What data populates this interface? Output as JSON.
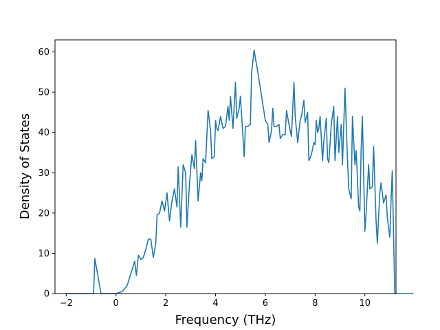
{
  "chart_data": {
    "type": "line",
    "title": "",
    "xlabel": "Frequency (THz)",
    "ylabel": "Density of States",
    "xlim": [
      -2.45,
      11.25
    ],
    "ylim": [
      0,
      63
    ],
    "xticks": [
      -2,
      0,
      2,
      4,
      6,
      8,
      10
    ],
    "yticks": [
      0,
      10,
      20,
      30,
      40,
      50,
      60
    ],
    "grid": false,
    "legend": "none",
    "line_color": "#1f77b4",
    "series": [
      {
        "points": [
          [
            -2.0,
            0
          ],
          [
            -0.9,
            0
          ],
          [
            -0.85,
            8.7
          ],
          [
            -0.6,
            0
          ],
          [
            0.0,
            0
          ],
          [
            0.25,
            0.5
          ],
          [
            0.45,
            2
          ],
          [
            0.6,
            5
          ],
          [
            0.75,
            8.0
          ],
          [
            0.82,
            4.5
          ],
          [
            0.9,
            9.5
          ],
          [
            1.0,
            8.5
          ],
          [
            1.1,
            9.0
          ],
          [
            1.2,
            11.0
          ],
          [
            1.3,
            13.5
          ],
          [
            1.4,
            13.5
          ],
          [
            1.5,
            9.0
          ],
          [
            1.6,
            12.5
          ],
          [
            1.65,
            19.5
          ],
          [
            1.75,
            20.0
          ],
          [
            1.85,
            23.0
          ],
          [
            1.95,
            20.5
          ],
          [
            2.05,
            25.0
          ],
          [
            2.15,
            18.0
          ],
          [
            2.25,
            23.0
          ],
          [
            2.35,
            26.0
          ],
          [
            2.45,
            21.5
          ],
          [
            2.5,
            31.5
          ],
          [
            2.6,
            16.5
          ],
          [
            2.7,
            32.0
          ],
          [
            2.8,
            30.0
          ],
          [
            2.85,
            16.5
          ],
          [
            2.95,
            27.0
          ],
          [
            3.05,
            34.5
          ],
          [
            3.15,
            31.0
          ],
          [
            3.2,
            38.0
          ],
          [
            3.3,
            23.0
          ],
          [
            3.4,
            30.0
          ],
          [
            3.45,
            28.0
          ],
          [
            3.5,
            33.5
          ],
          [
            3.6,
            32.5
          ],
          [
            3.7,
            45.5
          ],
          [
            3.8,
            40.5
          ],
          [
            3.85,
            33.5
          ],
          [
            3.95,
            34.0
          ],
          [
            4.0,
            43.0
          ],
          [
            4.05,
            41.0
          ],
          [
            4.1,
            40.5
          ],
          [
            4.2,
            44.0
          ],
          [
            4.3,
            41.0
          ],
          [
            4.4,
            41.5
          ],
          [
            4.5,
            46.5
          ],
          [
            4.55,
            43.0
          ],
          [
            4.6,
            49.0
          ],
          [
            4.7,
            41.0
          ],
          [
            4.8,
            52.5
          ],
          [
            4.85,
            43.5
          ],
          [
            4.95,
            46.0
          ],
          [
            5.0,
            49.0
          ],
          [
            5.05,
            44.0
          ],
          [
            5.15,
            34.0
          ],
          [
            5.2,
            41.5
          ],
          [
            5.3,
            41.5
          ],
          [
            5.4,
            42.0
          ],
          [
            5.45,
            55.0
          ],
          [
            5.55,
            60.5
          ],
          [
            5.6,
            58.5
          ],
          [
            5.7,
            55.0
          ],
          [
            5.8,
            51.0
          ],
          [
            5.9,
            47.0
          ],
          [
            6.0,
            43.0
          ],
          [
            6.1,
            42.0
          ],
          [
            6.15,
            37.5
          ],
          [
            6.25,
            40.5
          ],
          [
            6.3,
            46.0
          ],
          [
            6.35,
            41.5
          ],
          [
            6.45,
            41.5
          ],
          [
            6.55,
            42.0
          ],
          [
            6.6,
            38.5
          ],
          [
            6.7,
            39.5
          ],
          [
            6.8,
            39.5
          ],
          [
            6.85,
            45.5
          ],
          [
            6.95,
            42.0
          ],
          [
            7.05,
            39.0
          ],
          [
            7.15,
            52.5
          ],
          [
            7.2,
            44.0
          ],
          [
            7.3,
            37.5
          ],
          [
            7.4,
            43.0
          ],
          [
            7.45,
            44.0
          ],
          [
            7.55,
            48.0
          ],
          [
            7.6,
            42.5
          ],
          [
            7.7,
            45.0
          ],
          [
            7.75,
            33.0
          ],
          [
            7.85,
            34.5
          ],
          [
            7.95,
            37.5
          ],
          [
            8.0,
            37.0
          ],
          [
            8.05,
            43.0
          ],
          [
            8.1,
            40.0
          ],
          [
            8.15,
            41.0
          ],
          [
            8.2,
            44.0
          ],
          [
            8.3,
            33.0
          ],
          [
            8.35,
            38.0
          ],
          [
            8.45,
            43.5
          ],
          [
            8.5,
            33.5
          ],
          [
            8.55,
            32.5
          ],
          [
            8.65,
            42.0
          ],
          [
            8.75,
            46.5
          ],
          [
            8.8,
            33.0
          ],
          [
            8.9,
            44.0
          ],
          [
            8.95,
            35.0
          ],
          [
            9.05,
            42.0
          ],
          [
            9.1,
            32.0
          ],
          [
            9.2,
            51.0
          ],
          [
            9.3,
            33.5
          ],
          [
            9.35,
            26.0
          ],
          [
            9.45,
            23.5
          ],
          [
            9.5,
            44.0
          ],
          [
            9.6,
            32.0
          ],
          [
            9.65,
            35.5
          ],
          [
            9.75,
            21.5
          ],
          [
            9.8,
            20.5
          ],
          [
            9.85,
            36.0
          ],
          [
            9.9,
            44.0
          ],
          [
            10.0,
            15.5
          ],
          [
            10.05,
            20.0
          ],
          [
            10.15,
            32.0
          ],
          [
            10.2,
            26.0
          ],
          [
            10.3,
            26.5
          ],
          [
            10.35,
            36.5
          ],
          [
            10.45,
            18.0
          ],
          [
            10.5,
            12.5
          ],
          [
            10.6,
            25.0
          ],
          [
            10.65,
            27.5
          ],
          [
            10.75,
            22.5
          ],
          [
            10.85,
            24.5
          ],
          [
            10.9,
            19.0
          ],
          [
            11.0,
            14.0
          ],
          [
            11.05,
            23.0
          ],
          [
            11.1,
            30.5
          ],
          [
            11.2,
            0
          ],
          [
            11.95,
            0
          ]
        ]
      }
    ]
  }
}
